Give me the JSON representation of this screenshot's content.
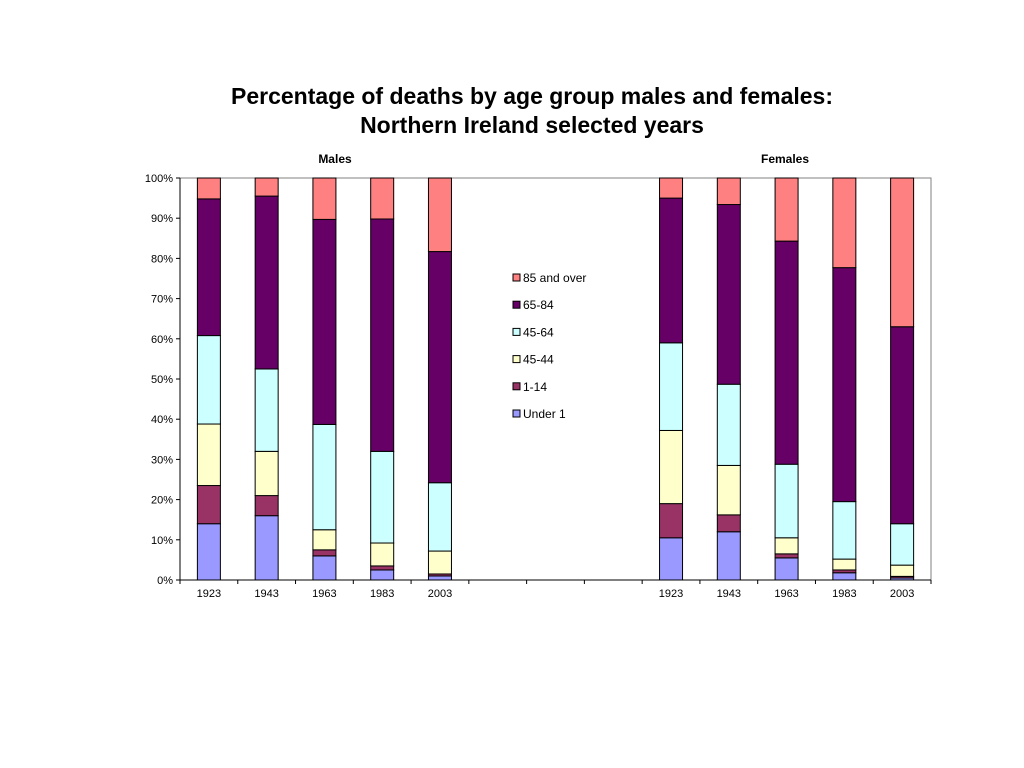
{
  "chart_data": {
    "type": "bar",
    "stacked": true,
    "percent_stacked": true,
    "title": "Percentage of deaths by age group males and females:",
    "subtitle": "Northern Ireland selected years",
    "group_labels": [
      "Males",
      "Females"
    ],
    "categories": [
      "1923",
      "1943",
      "1963",
      "1983",
      "2003",
      "",
      "",
      "",
      "1923",
      "1943",
      "1963",
      "1983",
      "2003"
    ],
    "ylim": [
      0,
      100
    ],
    "yticks": [
      "0%",
      "10%",
      "20%",
      "30%",
      "40%",
      "50%",
      "60%",
      "70%",
      "80%",
      "90%",
      "100%"
    ],
    "grid": false,
    "legend_position": "center",
    "series": [
      {
        "name": "Under 1",
        "color": "#9999ff",
        "values": [
          14,
          16,
          6,
          2.5,
          1,
          null,
          null,
          null,
          10.5,
          12,
          5.5,
          1.8,
          0.5
        ]
      },
      {
        "name": "1-14",
        "color": "#993366",
        "values": [
          9.5,
          5,
          1.5,
          1,
          0.5,
          null,
          null,
          null,
          8.5,
          4.2,
          1,
          0.7,
          0.4
        ]
      },
      {
        "name": "45-44",
        "color": "#ffffcc",
        "values": [
          15.3,
          11,
          5,
          5.7,
          5.7,
          null,
          null,
          null,
          18.2,
          12.3,
          4,
          2.7,
          2.8
        ]
      },
      {
        "name": "45-64",
        "color": "#ccffff",
        "values": [
          22,
          20.5,
          26.2,
          22.8,
          17,
          null,
          null,
          null,
          21.8,
          20.2,
          18.3,
          14.3,
          10.3
        ]
      },
      {
        "name": "65-84",
        "color": "#660066",
        "values": [
          34,
          43,
          51,
          57.8,
          57.5,
          null,
          null,
          null,
          36,
          44.7,
          55.5,
          58.2,
          49
        ]
      },
      {
        "name": "85 and over",
        "color": "#ff8080",
        "values": [
          5.2,
          4.5,
          10.3,
          10.2,
          18.3,
          null,
          null,
          null,
          5,
          6.6,
          15.7,
          22.3,
          37
        ]
      }
    ]
  }
}
